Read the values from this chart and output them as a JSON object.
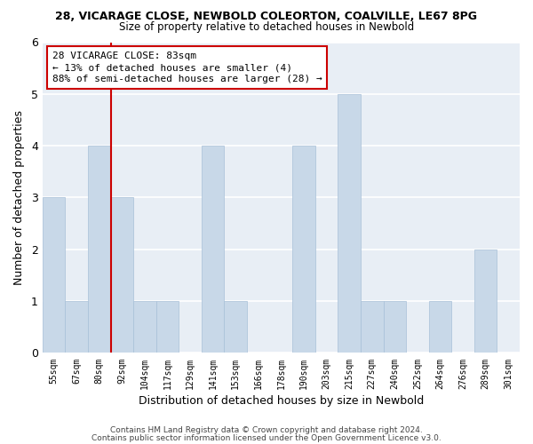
{
  "title": "28, VICARAGE CLOSE, NEWBOLD COLEORTON, COALVILLE, LE67 8PG",
  "subtitle": "Size of property relative to detached houses in Newbold",
  "xlabel": "Distribution of detached houses by size in Newbold",
  "ylabel": "Number of detached properties",
  "bar_labels": [
    "55sqm",
    "67sqm",
    "80sqm",
    "92sqm",
    "104sqm",
    "117sqm",
    "129sqm",
    "141sqm",
    "153sqm",
    "166sqm",
    "178sqm",
    "190sqm",
    "203sqm",
    "215sqm",
    "227sqm",
    "240sqm",
    "252sqm",
    "264sqm",
    "276sqm",
    "289sqm",
    "301sqm"
  ],
  "bar_values": [
    3,
    1,
    4,
    3,
    1,
    1,
    0,
    4,
    1,
    0,
    0,
    4,
    0,
    5,
    1,
    1,
    0,
    1,
    0,
    2,
    0
  ],
  "bar_color": "#c8d8e8",
  "bar_edge_color": "#a8c0d8",
  "vline_x": 2.5,
  "vline_color": "#cc0000",
  "ylim": [
    0,
    6
  ],
  "yticks": [
    0,
    1,
    2,
    3,
    4,
    5,
    6
  ],
  "annotation_title": "28 VICARAGE CLOSE: 83sqm",
  "annotation_line1": "← 13% of detached houses are smaller (4)",
  "annotation_line2": "88% of semi-detached houses are larger (28) →",
  "annotation_box_color": "#ffffff",
  "annotation_box_edge": "#cc0000",
  "footer1": "Contains HM Land Registry data © Crown copyright and database right 2024.",
  "footer2": "Contains public sector information licensed under the Open Government Licence v3.0.",
  "bg_color": "#ffffff",
  "plot_bg_color": "#e8eef5"
}
